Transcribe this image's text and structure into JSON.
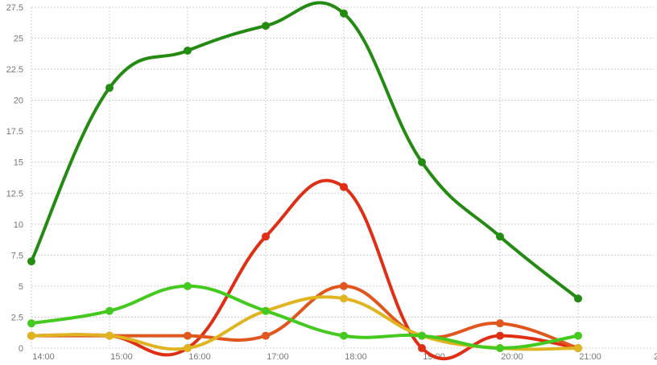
{
  "chart_data": {
    "type": "line",
    "title": "",
    "xlabel": "",
    "ylabel": "",
    "ylim": [
      0,
      27.5
    ],
    "yticks": [
      "0",
      "2.5",
      "5",
      "7.5",
      "10",
      "12.5",
      "15",
      "17.5",
      "20",
      "22.5",
      "25",
      "27.5"
    ],
    "categories": [
      "14:00",
      "15:00",
      "16:00",
      "17:00",
      "18:00",
      "19:00",
      "20:00",
      "21:00"
    ],
    "extra_tick_label": "2",
    "grid": true,
    "legend": "none",
    "series": [
      {
        "name": "dark-green",
        "color": "#238a12",
        "values": [
          7,
          21,
          24,
          26,
          27,
          15,
          9,
          4
        ]
      },
      {
        "name": "red",
        "color": "#e02e15",
        "values": [
          1,
          1,
          0,
          9,
          13,
          0,
          1,
          0
        ]
      },
      {
        "name": "orange",
        "color": "#e0561c",
        "values": [
          1,
          1,
          1,
          1,
          5,
          1,
          2,
          0
        ]
      },
      {
        "name": "yellow",
        "color": "#e0b420",
        "values": [
          1,
          1,
          0,
          3,
          4,
          1,
          0,
          0
        ]
      },
      {
        "name": "light-green",
        "color": "#44c91e",
        "values": [
          2,
          3,
          5,
          3,
          1,
          1,
          0,
          1
        ]
      }
    ]
  }
}
